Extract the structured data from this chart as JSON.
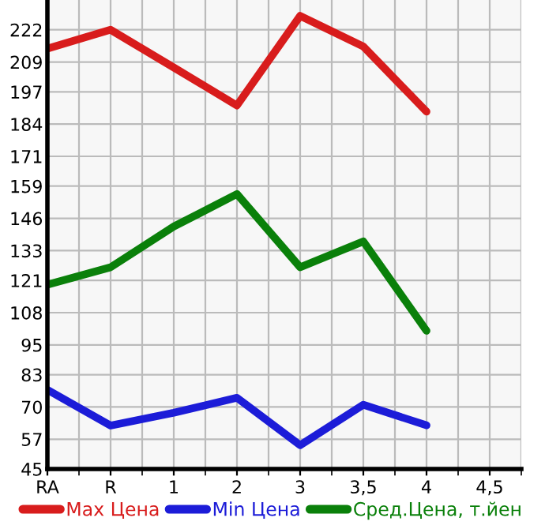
{
  "chart_data": {
    "type": "line",
    "categories": [
      "RA",
      "R",
      "1",
      "2",
      "3",
      "3,5",
      "4",
      "4,5"
    ],
    "series": [
      {
        "name": "Max Цена",
        "color": "#d81c1c",
        "values": [
          214.4,
          222,
          206.8,
          191.5,
          227.6,
          215.3,
          189,
          null
        ]
      },
      {
        "name": "Min Цена",
        "color": "#1c1cd8",
        "values": [
          76.9,
          62.5,
          67.7,
          73.7,
          54.6,
          70.9,
          62.6,
          null
        ]
      },
      {
        "name": "Сред.Цена, т.йен",
        "color": "#0a800a",
        "values": [
          119.3,
          126.3,
          142.7,
          155.8,
          126.3,
          136.7,
          100.7,
          null
        ]
      }
    ],
    "ylim": [
      45,
      234
    ],
    "yticks": [
      45,
      57,
      70,
      83,
      95,
      108,
      121,
      133,
      146,
      159,
      171,
      184,
      197,
      209,
      222
    ],
    "grid": true,
    "legend": "bottom",
    "marker": "none",
    "line_style": "solid"
  }
}
